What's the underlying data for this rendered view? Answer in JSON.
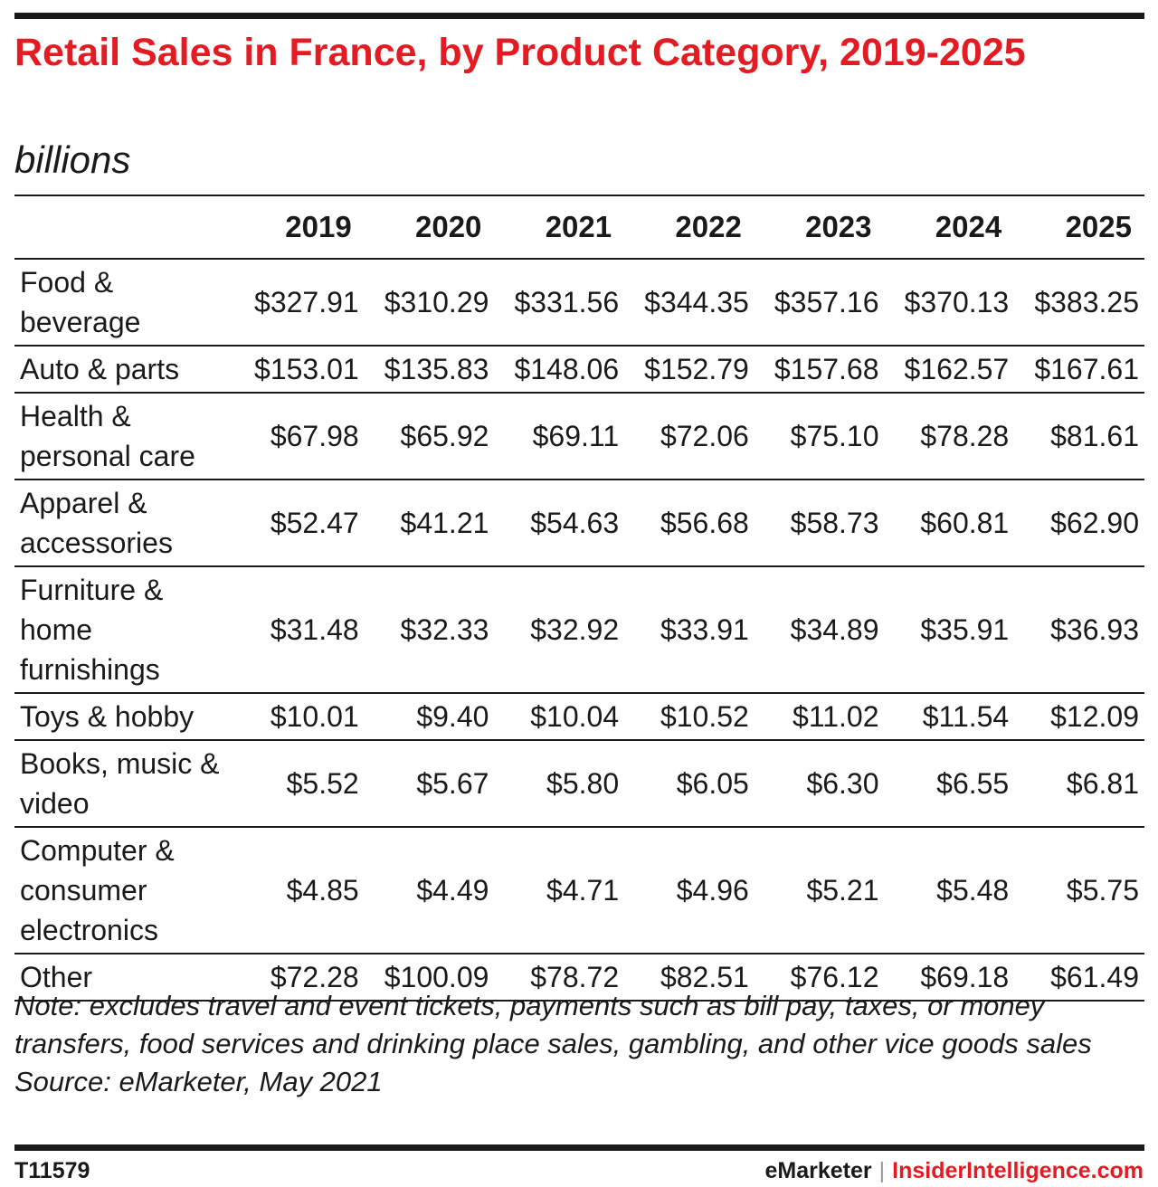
{
  "chart_data": {
    "type": "table",
    "title": "Retail Sales in France, by Product Category, 2019-2025",
    "subtitle": "billions",
    "columns": [
      "2019",
      "2020",
      "2021",
      "2022",
      "2023",
      "2024",
      "2025"
    ],
    "rows": [
      {
        "category": "Food & beverage",
        "values": [
          "$327.91",
          "$310.29",
          "$331.56",
          "$344.35",
          "$357.16",
          "$370.13",
          "$383.25"
        ]
      },
      {
        "category": "Auto & parts",
        "values": [
          "$153.01",
          "$135.83",
          "$148.06",
          "$152.79",
          "$157.68",
          "$162.57",
          "$167.61"
        ]
      },
      {
        "category": "Health & personal care",
        "values": [
          "$67.98",
          "$65.92",
          "$69.11",
          "$72.06",
          "$75.10",
          "$78.28",
          "$81.61"
        ]
      },
      {
        "category": "Apparel & accessories",
        "values": [
          "$52.47",
          "$41.21",
          "$54.63",
          "$56.68",
          "$58.73",
          "$60.81",
          "$62.90"
        ]
      },
      {
        "category": "Furniture & home furnishings",
        "values": [
          "$31.48",
          "$32.33",
          "$32.92",
          "$33.91",
          "$34.89",
          "$35.91",
          "$36.93"
        ]
      },
      {
        "category": "Toys & hobby",
        "values": [
          "$10.01",
          "$9.40",
          "$10.04",
          "$10.52",
          "$11.02",
          "$11.54",
          "$12.09"
        ]
      },
      {
        "category": "Books, music & video",
        "values": [
          "$5.52",
          "$5.67",
          "$5.80",
          "$6.05",
          "$6.30",
          "$6.55",
          "$6.81"
        ]
      },
      {
        "category": "Computer & consumer electronics",
        "values": [
          "$4.85",
          "$4.49",
          "$4.71",
          "$4.96",
          "$5.21",
          "$5.48",
          "$5.75"
        ]
      },
      {
        "category": "Other",
        "values": [
          "$72.28",
          "$100.09",
          "$78.72",
          "$82.51",
          "$76.12",
          "$69.18",
          "$61.49"
        ]
      }
    ],
    "note": "Note: excludes travel and event tickets, payments such as bill pay, taxes, or money transfers, food services and drinking place sales, gambling, and other vice goods sales",
    "source": "Source: eMarketer, May 2021"
  },
  "footer": {
    "chart_id": "T11579",
    "brand_emarketer": "eMarketer",
    "separator": "|",
    "brand_insider": "InsiderIntelligence.com"
  },
  "colors": {
    "title": "#e31b23",
    "text": "#1a1a1a",
    "rule": "#1a1a1a"
  }
}
